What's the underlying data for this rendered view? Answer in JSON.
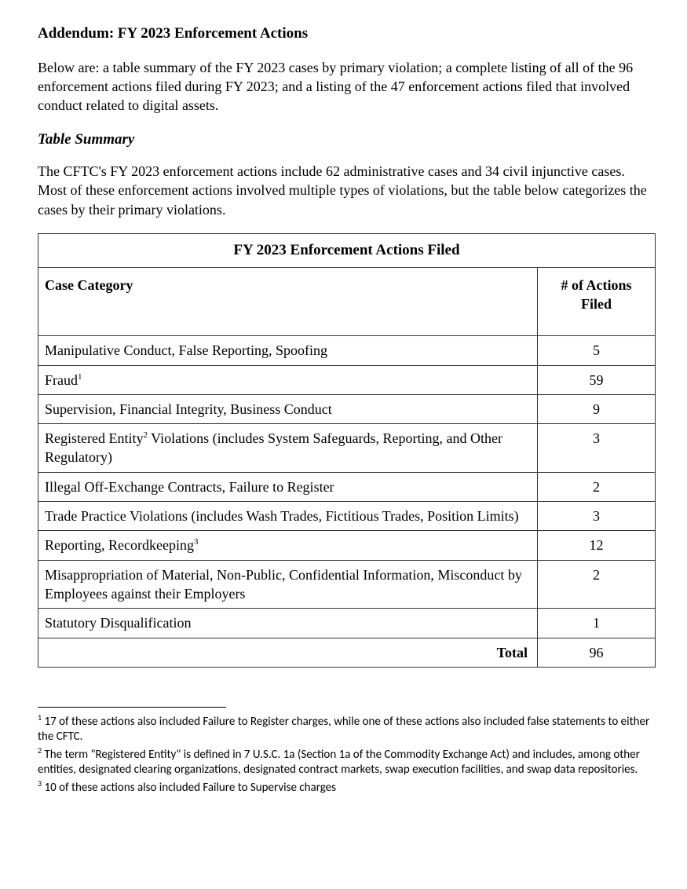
{
  "title": "Addendum: FY 2023 Enforcement Actions",
  "intro": "Below are: a table summary of the FY 2023 cases by primary violation; a complete listing of all of the 96 enforcement actions filed during FY 2023; and a listing of the 47 enforcement actions filed that involved conduct related to digital assets.",
  "subhead": "Table Summary",
  "summary_para": "The CFTC's FY 2023 enforcement actions include 62 administrative cases and 34 civil injunctive cases. Most of these enforcement actions involved multiple types of violations, but the table below categorizes the cases by their primary violations.",
  "table": {
    "title": "FY 2023 Enforcement Actions Filed",
    "col_category": "Case Category",
    "col_count": "# of Actions Filed",
    "rows": [
      {
        "category_pre": "Manipulative Conduct, False Reporting, Spoofing",
        "sup": "",
        "category_post": "",
        "count": "5"
      },
      {
        "category_pre": "Fraud",
        "sup": "1",
        "category_post": "",
        "count": "59"
      },
      {
        "category_pre": "Supervision, Financial Integrity, Business Conduct",
        "sup": "",
        "category_post": "",
        "count": "9"
      },
      {
        "category_pre": "Registered Entity",
        "sup": "2",
        "category_post": " Violations (includes System Safeguards, Reporting, and Other Regulatory)",
        "count": "3"
      },
      {
        "category_pre": "Illegal Off-Exchange Contracts, Failure to Register",
        "sup": "",
        "category_post": "",
        "count": "2"
      },
      {
        "category_pre": "Trade Practice Violations (includes Wash Trades, Fictitious Trades, Position Limits)",
        "sup": "",
        "category_post": "",
        "count": "3"
      },
      {
        "category_pre": "Reporting, Recordkeeping",
        "sup": "3",
        "category_post": "",
        "count": "12"
      },
      {
        "category_pre": "Misappropriation of Material, Non-Public, Confidential Information, Misconduct by Employees against their Employers",
        "sup": "",
        "category_post": "",
        "count": "2"
      },
      {
        "category_pre": "Statutory Disqualification",
        "sup": "",
        "category_post": "",
        "count": "1"
      }
    ],
    "total_label": "Total",
    "total_value": "96"
  },
  "footnotes": {
    "n1_sup": "1",
    "n1_text": " 17 of these actions also included Failure to Register charges, while one of these actions also included false statements to either the CFTC.",
    "n2_sup": "2",
    "n2_text": " The term \"Registered Entity\" is defined in 7 U.S.C. 1a (Section 1a of the Commodity Exchange Act) and includes, among other entities, designated clearing organizations, designated contract markets, swap execution facilities, and swap data repositories.",
    "n3_sup": "3",
    "n3_text": " 10 of these actions also included Failure to Supervise charges"
  }
}
